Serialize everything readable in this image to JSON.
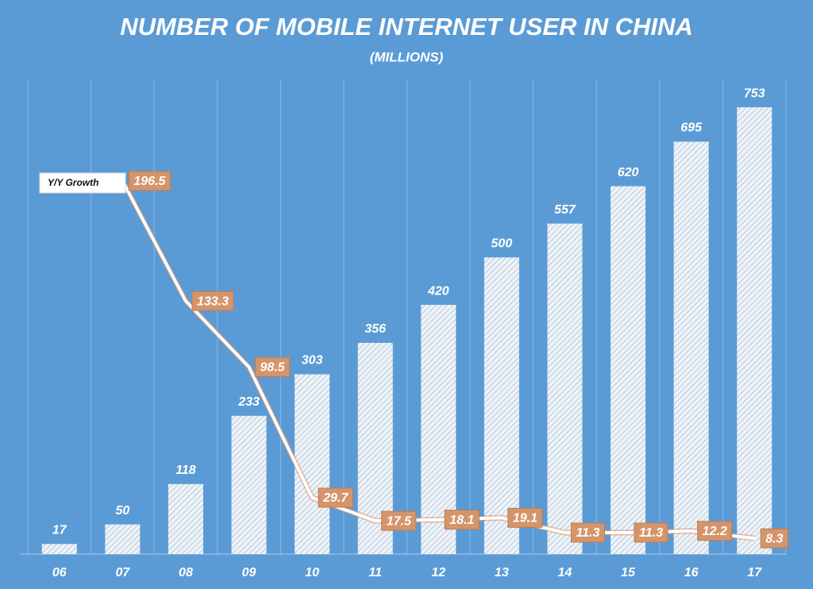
{
  "chart_data": {
    "type": "bar",
    "title": "NUMBER OF MOBILE INTERNET USER IN CHINA",
    "subtitle": "(MILLIONS)",
    "categories": [
      "06",
      "07",
      "08",
      "09",
      "10",
      "11",
      "12",
      "13",
      "14",
      "15",
      "16",
      "17"
    ],
    "values": [
      17,
      50,
      118,
      233,
      303,
      356,
      420,
      500,
      557,
      620,
      695,
      753
    ],
    "color": "#ffffff",
    "ylim": [
      0,
      800
    ],
    "line": {
      "name": "Y/Y Growth",
      "axis": "y2",
      "color": "#ffffff",
      "label_color": "#d5956b",
      "values": [
        null,
        196.5,
        133.3,
        98.5,
        29.7,
        17.5,
        18.1,
        19.1,
        11.3,
        11.3,
        12.2,
        8.3
      ]
    },
    "y2lim": [
      0,
      250
    ],
    "grid": true
  }
}
